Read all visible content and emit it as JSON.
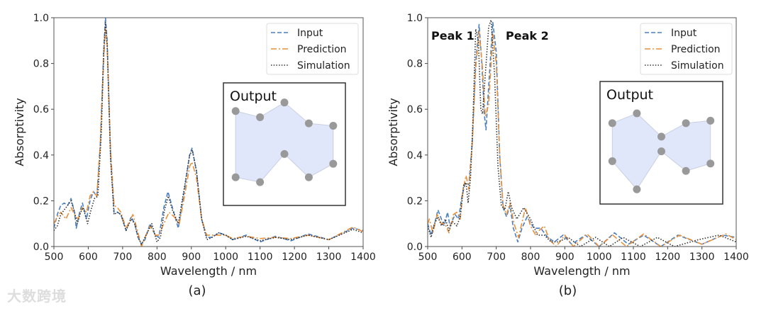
{
  "chart_data": [
    {
      "type": "line",
      "panel_label": "(a)",
      "xlabel": "Wavelength / nm",
      "ylabel": "Absorptivity",
      "xlim": [
        500,
        1400
      ],
      "ylim": [
        0,
        1.0
      ],
      "xticks": [
        500,
        600,
        700,
        800,
        900,
        1000,
        1100,
        1200,
        1300,
        1400
      ],
      "yticks": [
        0.0,
        0.2,
        0.4,
        0.6,
        0.8,
        1.0
      ],
      "legend_position": "top-right",
      "inset_title": "Output",
      "annotations": [],
      "series": [
        {
          "name": "Input",
          "style": "dashed",
          "color": "#4a7fc1",
          "x": [
            500,
            510,
            520,
            530,
            540,
            550,
            560,
            565,
            575,
            583,
            595,
            605,
            615,
            625,
            635,
            645,
            650,
            655,
            665,
            675,
            685,
            695,
            710,
            725,
            735,
            745,
            755,
            765,
            780,
            795,
            805,
            820,
            832,
            845,
            862,
            880,
            895,
            902,
            915,
            930,
            945,
            960,
            980,
            1000,
            1020,
            1060,
            1100,
            1145,
            1190,
            1240,
            1300,
            1370,
            1400
          ],
          "y": [
            0.08,
            0.14,
            0.18,
            0.19,
            0.18,
            0.21,
            0.15,
            0.08,
            0.15,
            0.19,
            0.12,
            0.2,
            0.24,
            0.22,
            0.45,
            0.85,
            1.0,
            0.9,
            0.4,
            0.15,
            0.15,
            0.14,
            0.07,
            0.13,
            0.1,
            0.04,
            0.01,
            0.03,
            0.1,
            0.05,
            0.04,
            0.17,
            0.24,
            0.17,
            0.08,
            0.25,
            0.4,
            0.43,
            0.33,
            0.12,
            0.04,
            0.04,
            0.06,
            0.05,
            0.03,
            0.05,
            0.02,
            0.045,
            0.025,
            0.055,
            0.03,
            0.08,
            0.07
          ]
        },
        {
          "name": "Prediction",
          "style": "dashdot",
          "color": "#e8913a",
          "x": [
            500,
            510,
            520,
            535,
            550,
            560,
            570,
            583,
            595,
            605,
            615,
            625,
            635,
            645,
            650,
            655,
            665,
            675,
            685,
            695,
            710,
            730,
            745,
            755,
            765,
            780,
            795,
            805,
            820,
            835,
            850,
            865,
            880,
            895,
            902,
            915,
            930,
            945,
            960,
            980,
            1000,
            1020,
            1060,
            1100,
            1145,
            1190,
            1240,
            1300,
            1370,
            1400
          ],
          "y": [
            0.1,
            0.13,
            0.15,
            0.12,
            0.17,
            0.14,
            0.12,
            0.17,
            0.15,
            0.22,
            0.24,
            0.22,
            0.45,
            0.82,
            0.95,
            0.88,
            0.42,
            0.18,
            0.17,
            0.15,
            0.08,
            0.14,
            0.06,
            0.0,
            0.04,
            0.09,
            0.05,
            0.05,
            0.1,
            0.15,
            0.13,
            0.1,
            0.22,
            0.35,
            0.37,
            0.3,
            0.12,
            0.05,
            0.05,
            0.05,
            0.05,
            0.035,
            0.045,
            0.035,
            0.04,
            0.035,
            0.05,
            0.03,
            0.085,
            0.065
          ]
        },
        {
          "name": "Simulation",
          "style": "dotted",
          "color": "#333333",
          "x": [
            500,
            510,
            520,
            530,
            540,
            550,
            560,
            568,
            578,
            585,
            598,
            608,
            618,
            628,
            638,
            645,
            650,
            655,
            665,
            675,
            685,
            695,
            710,
            725,
            735,
            745,
            755,
            765,
            785,
            800,
            810,
            822,
            833,
            845,
            862,
            880,
            895,
            903,
            915,
            930,
            945,
            960,
            980,
            1000,
            1020,
            1060,
            1100,
            1145,
            1190,
            1240,
            1300,
            1370,
            1400
          ],
          "y": [
            0.07,
            0.09,
            0.14,
            0.16,
            0.18,
            0.2,
            0.15,
            0.1,
            0.15,
            0.17,
            0.1,
            0.16,
            0.21,
            0.22,
            0.5,
            0.85,
            0.98,
            0.88,
            0.38,
            0.14,
            0.15,
            0.14,
            0.07,
            0.12,
            0.1,
            0.04,
            0.01,
            0.04,
            0.1,
            0.02,
            0.04,
            0.16,
            0.22,
            0.16,
            0.1,
            0.26,
            0.4,
            0.42,
            0.33,
            0.12,
            0.03,
            0.04,
            0.06,
            0.05,
            0.03,
            0.045,
            0.025,
            0.04,
            0.03,
            0.05,
            0.03,
            0.075,
            0.06
          ]
        }
      ]
    },
    {
      "type": "line",
      "panel_label": "(b)",
      "xlabel": "Wavelength / nm",
      "ylabel": "Absorptivity",
      "xlim": [
        500,
        1400
      ],
      "ylim": [
        0,
        1.0
      ],
      "xticks": [
        500,
        600,
        700,
        800,
        900,
        1000,
        1100,
        1200,
        1300,
        1400
      ],
      "yticks": [
        0.0,
        0.2,
        0.4,
        0.6,
        0.8,
        1.0
      ],
      "legend_position": "top-right",
      "inset_title": "Output",
      "annotations": [
        "Peak 1",
        "Peak 2"
      ],
      "series": [
        {
          "name": "Input",
          "style": "dashed",
          "color": "#4a7fc1",
          "x": [
            500,
            510,
            520,
            530,
            540,
            548,
            558,
            565,
            580,
            590,
            600,
            610,
            620,
            630,
            640,
            650,
            658,
            665,
            670,
            678,
            690,
            700,
            710,
            720,
            730,
            740,
            750,
            763,
            775,
            790,
            810,
            830,
            850,
            870,
            895,
            920,
            960,
            1000,
            1045,
            1085,
            1130,
            1180,
            1230,
            1300,
            1360,
            1400
          ],
          "y": [
            0.1,
            0.05,
            0.1,
            0.16,
            0.12,
            0.09,
            0.15,
            0.09,
            0.14,
            0.12,
            0.22,
            0.28,
            0.27,
            0.45,
            0.8,
            0.97,
            0.8,
            0.58,
            0.51,
            0.7,
            0.98,
            0.85,
            0.4,
            0.17,
            0.13,
            0.18,
            0.08,
            0.02,
            0.08,
            0.13,
            0.08,
            0.08,
            0.04,
            0.02,
            0.05,
            0.01,
            0.05,
            0.0,
            0.06,
            0.01,
            0.05,
            0.0,
            0.05,
            0.01,
            0.05,
            0.04
          ]
        },
        {
          "name": "Prediction",
          "style": "dashdot",
          "color": "#e8913a",
          "x": [
            500,
            505,
            515,
            528,
            540,
            550,
            562,
            575,
            585,
            595,
            603,
            612,
            620,
            630,
            640,
            650,
            660,
            668,
            678,
            690,
            700,
            710,
            720,
            730,
            740,
            752,
            765,
            785,
            800,
            815,
            825,
            840,
            855,
            875,
            900,
            925,
            965,
            1000,
            1040,
            1080,
            1130,
            1180,
            1235,
            1300,
            1370,
            1400
          ],
          "y": [
            0.1,
            0.12,
            0.06,
            0.14,
            0.1,
            0.1,
            0.06,
            0.14,
            0.15,
            0.12,
            0.25,
            0.31,
            0.25,
            0.45,
            0.78,
            0.94,
            0.78,
            0.57,
            0.62,
            0.93,
            0.8,
            0.4,
            0.18,
            0.14,
            0.19,
            0.1,
            0.04,
            0.17,
            0.09,
            0.05,
            0.07,
            0.09,
            0.03,
            0.0,
            0.05,
            0.0,
            0.055,
            0.0,
            0.05,
            0.0,
            0.055,
            0.0,
            0.05,
            0.01,
            0.055,
            0.03
          ]
        },
        {
          "name": "Simulation",
          "style": "dotted",
          "color": "#333333",
          "x": [
            500,
            510,
            520,
            530,
            540,
            552,
            562,
            572,
            585,
            595,
            605,
            612,
            618,
            625,
            632,
            640,
            648,
            655,
            660,
            668,
            678,
            685,
            695,
            705,
            715,
            725,
            735,
            745,
            760,
            780,
            800,
            820,
            840,
            860,
            880,
            910,
            945,
            990,
            1030,
            1070,
            1120,
            1170,
            1220,
            1290,
            1350,
            1400
          ],
          "y": [
            0.09,
            0.04,
            0.1,
            0.13,
            0.09,
            0.12,
            0.07,
            0.11,
            0.09,
            0.13,
            0.27,
            0.28,
            0.19,
            0.3,
            0.55,
            0.95,
            0.9,
            0.6,
            0.58,
            0.75,
            0.96,
            0.99,
            0.75,
            0.35,
            0.18,
            0.16,
            0.24,
            0.17,
            0.12,
            0.17,
            0.12,
            0.05,
            0.05,
            0.02,
            0.02,
            0.04,
            0.0,
            0.04,
            0.0,
            0.04,
            0.0,
            0.04,
            0.0,
            0.03,
            0.05,
            0.02
          ]
        }
      ]
    }
  ],
  "watermark": "大数跨境"
}
